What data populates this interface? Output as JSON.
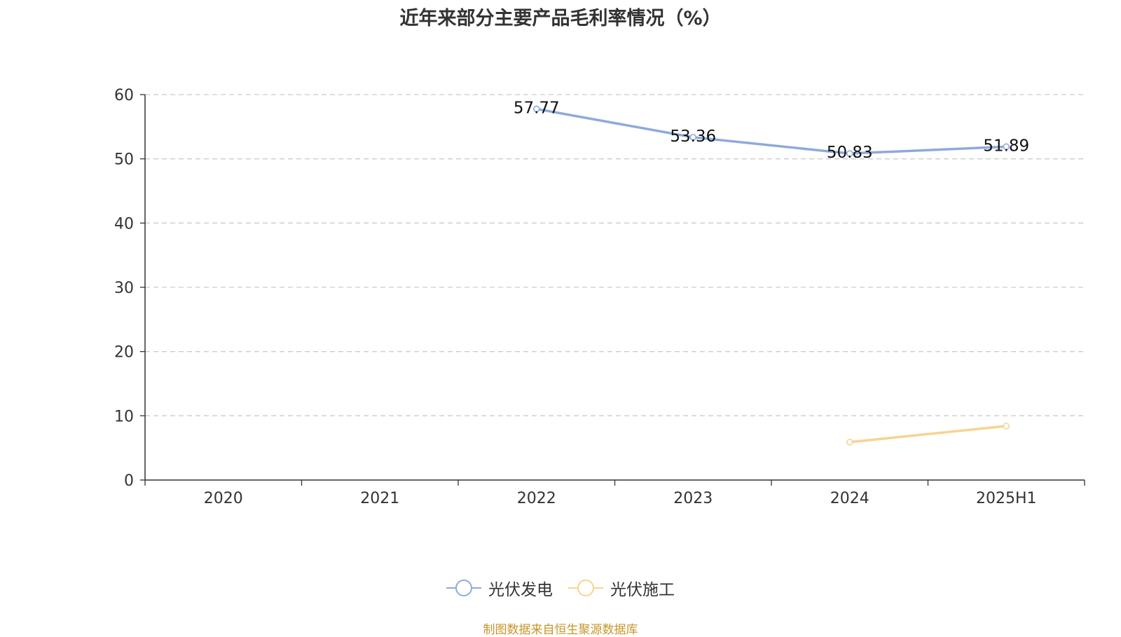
{
  "chart_data": {
    "type": "line",
    "title": "近年来部分主要产品毛利率情况（%）",
    "categories": [
      "2020",
      "2021",
      "2022",
      "2023",
      "2024",
      "2025H1"
    ],
    "ylim": [
      0,
      60
    ],
    "yticks": [
      0,
      10,
      20,
      30,
      40,
      50,
      60
    ],
    "grid": true,
    "legend_position": "bottom",
    "series": [
      {
        "name": "光伏发电",
        "color": "#8eaadb",
        "values": [
          null,
          null,
          57.77,
          53.36,
          50.83,
          51.89
        ],
        "labels": [
          "",
          "",
          "57.77",
          "53.36",
          "50.83",
          "51.89"
        ]
      },
      {
        "name": "光伏施工",
        "color": "#f8d391",
        "values": [
          null,
          null,
          null,
          null,
          5.9,
          8.4
        ],
        "labels": [
          "",
          "",
          "",
          "",
          "",
          ""
        ]
      }
    ]
  },
  "footer": {
    "text": "制图数据来自恒生聚源数据库",
    "color": "#c8952a"
  }
}
